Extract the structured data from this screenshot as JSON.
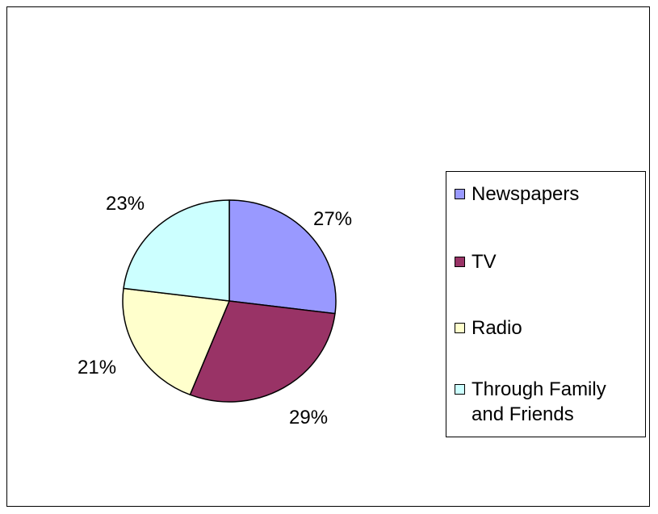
{
  "chart_data": {
    "type": "pie",
    "categories": [
      "Newspapers",
      "TV",
      "Radio",
      "Through Family and Friends"
    ],
    "values": [
      27,
      29,
      21,
      23
    ],
    "labels": [
      "27%",
      "29%",
      "21%",
      "23%"
    ],
    "colors": [
      "#9999FF",
      "#993366",
      "#FFFFCC",
      "#CCFFFF"
    ],
    "legend_position": "right"
  }
}
